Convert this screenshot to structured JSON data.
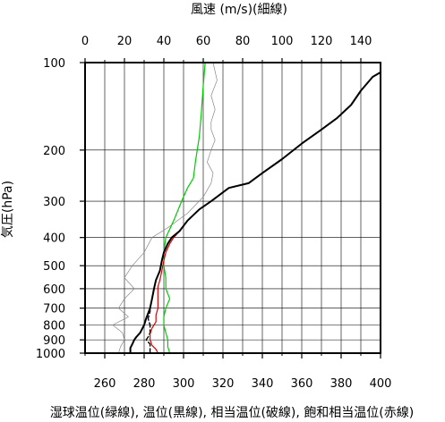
{
  "chart_data": {
    "type": "line",
    "top_axis": {
      "label": "風速 (m/s)(細線)",
      "range": [
        0,
        150
      ],
      "ticks": [
        0,
        20,
        40,
        60,
        80,
        100,
        120,
        140
      ]
    },
    "bottom_axis": {
      "label": "湿球温位(緑線), 温位(黒線), 相当温位(破線), 飽和相当温位(赤線)",
      "range": [
        250,
        400
      ],
      "ticks": [
        260,
        280,
        300,
        320,
        340,
        360,
        380,
        400
      ]
    },
    "y_axis": {
      "label": "気圧(hPa)",
      "scale": "log",
      "range": [
        1000,
        100
      ],
      "ticks": [
        100,
        200,
        300,
        400,
        500,
        600,
        700,
        800,
        900,
        1000
      ]
    },
    "grid": true,
    "series": [
      {
        "name": "湿球温位",
        "color": "#00cc00",
        "axis": "bottom",
        "points": [
          [
            293,
            1000
          ],
          [
            292,
            950
          ],
          [
            292,
            900
          ],
          [
            291,
            850
          ],
          [
            290,
            800
          ],
          [
            290,
            750
          ],
          [
            291,
            700
          ],
          [
            293,
            650
          ],
          [
            291,
            600
          ],
          [
            291,
            550
          ],
          [
            290,
            500
          ],
          [
            290,
            450
          ],
          [
            291,
            400
          ],
          [
            295,
            350
          ],
          [
            299,
            300
          ],
          [
            302,
            270
          ],
          [
            305,
            250
          ],
          [
            306,
            220
          ],
          [
            308,
            180
          ],
          [
            309,
            150
          ],
          [
            310,
            120
          ],
          [
            311,
            100
          ]
        ]
      },
      {
        "name": "温位",
        "color": "#000000",
        "axis": "bottom",
        "points": [
          [
            273,
            1000
          ],
          [
            273,
            960
          ],
          [
            274,
            930
          ],
          [
            275,
            900
          ],
          [
            276,
            880
          ],
          [
            278,
            850
          ],
          [
            280,
            800
          ],
          [
            281,
            760
          ],
          [
            283,
            700
          ],
          [
            284,
            650
          ],
          [
            285,
            600
          ],
          [
            286,
            560
          ],
          [
            288,
            520
          ],
          [
            289,
            480
          ],
          [
            290,
            450
          ],
          [
            292,
            420
          ],
          [
            294,
            400
          ],
          [
            298,
            380
          ],
          [
            302,
            350
          ],
          [
            308,
            320
          ],
          [
            314,
            300
          ],
          [
            323,
            270
          ],
          [
            333,
            260
          ],
          [
            340,
            240
          ],
          [
            350,
            215
          ],
          [
            360,
            190
          ],
          [
            370,
            170
          ],
          [
            378,
            155
          ],
          [
            385,
            140
          ],
          [
            390,
            125
          ],
          [
            396,
            112
          ],
          [
            400,
            108
          ]
        ]
      },
      {
        "name": "相当温位",
        "color": "#000000",
        "dashed": true,
        "axis": "bottom",
        "points": [
          [
            283,
            1000
          ],
          [
            283,
            960
          ],
          [
            283,
            930
          ],
          [
            281,
            900
          ],
          [
            282,
            880
          ],
          [
            283,
            850
          ],
          [
            283,
            800
          ],
          [
            282,
            760
          ],
          [
            283,
            720
          ],
          [
            283,
            700
          ],
          [
            284,
            650
          ],
          [
            285,
            600
          ],
          [
            286,
            560
          ],
          [
            288,
            520
          ],
          [
            289,
            480
          ],
          [
            290,
            450
          ],
          [
            292,
            420
          ],
          [
            294,
            400
          ],
          [
            298,
            380
          ],
          [
            302,
            350
          ],
          [
            308,
            320
          ],
          [
            314,
            300
          ],
          [
            323,
            270
          ],
          [
            333,
            260
          ],
          [
            340,
            240
          ],
          [
            350,
            215
          ],
          [
            360,
            190
          ],
          [
            370,
            170
          ],
          [
            378,
            155
          ],
          [
            385,
            140
          ],
          [
            390,
            125
          ],
          [
            396,
            112
          ],
          [
            400,
            108
          ]
        ]
      },
      {
        "name": "飽和相当温位",
        "color": "#dd0000",
        "axis": "bottom",
        "points": [
          [
            287,
            1000
          ],
          [
            286,
            970
          ],
          [
            284,
            940
          ],
          [
            283,
            900
          ],
          [
            283,
            860
          ],
          [
            284,
            820
          ],
          [
            286,
            780
          ],
          [
            286,
            740
          ],
          [
            287,
            700
          ],
          [
            287,
            660
          ],
          [
            287,
            620
          ],
          [
            287,
            590
          ],
          [
            288,
            560
          ],
          [
            289,
            520
          ],
          [
            290,
            480
          ],
          [
            291,
            450
          ],
          [
            293,
            420
          ],
          [
            295,
            400
          ],
          [
            298,
            380
          ],
          [
            302,
            350
          ],
          [
            308,
            320
          ],
          [
            314,
            300
          ],
          [
            323,
            270
          ],
          [
            333,
            260
          ],
          [
            340,
            240
          ],
          [
            350,
            215
          ],
          [
            360,
            190
          ],
          [
            370,
            170
          ],
          [
            378,
            155
          ],
          [
            385,
            140
          ],
          [
            390,
            125
          ],
          [
            396,
            112
          ],
          [
            400,
            108
          ]
        ]
      },
      {
        "name": "風速",
        "color": "#888888",
        "thin": true,
        "axis": "top",
        "points": [
          [
            17,
            1000
          ],
          [
            18,
            950
          ],
          [
            20,
            900
          ],
          [
            19,
            850
          ],
          [
            14,
            800
          ],
          [
            22,
            750
          ],
          [
            17,
            700
          ],
          [
            20,
            650
          ],
          [
            25,
            600
          ],
          [
            20,
            550
          ],
          [
            24,
            500
          ],
          [
            30,
            450
          ],
          [
            34,
            400
          ],
          [
            42,
            370
          ],
          [
            52,
            330
          ],
          [
            60,
            290
          ],
          [
            64,
            260
          ],
          [
            65,
            240
          ],
          [
            62,
            220
          ],
          [
            64,
            200
          ],
          [
            66,
            185
          ],
          [
            64,
            170
          ],
          [
            64,
            160
          ],
          [
            66,
            145
          ],
          [
            64,
            130
          ],
          [
            67,
            115
          ],
          [
            65,
            100
          ]
        ]
      }
    ]
  }
}
